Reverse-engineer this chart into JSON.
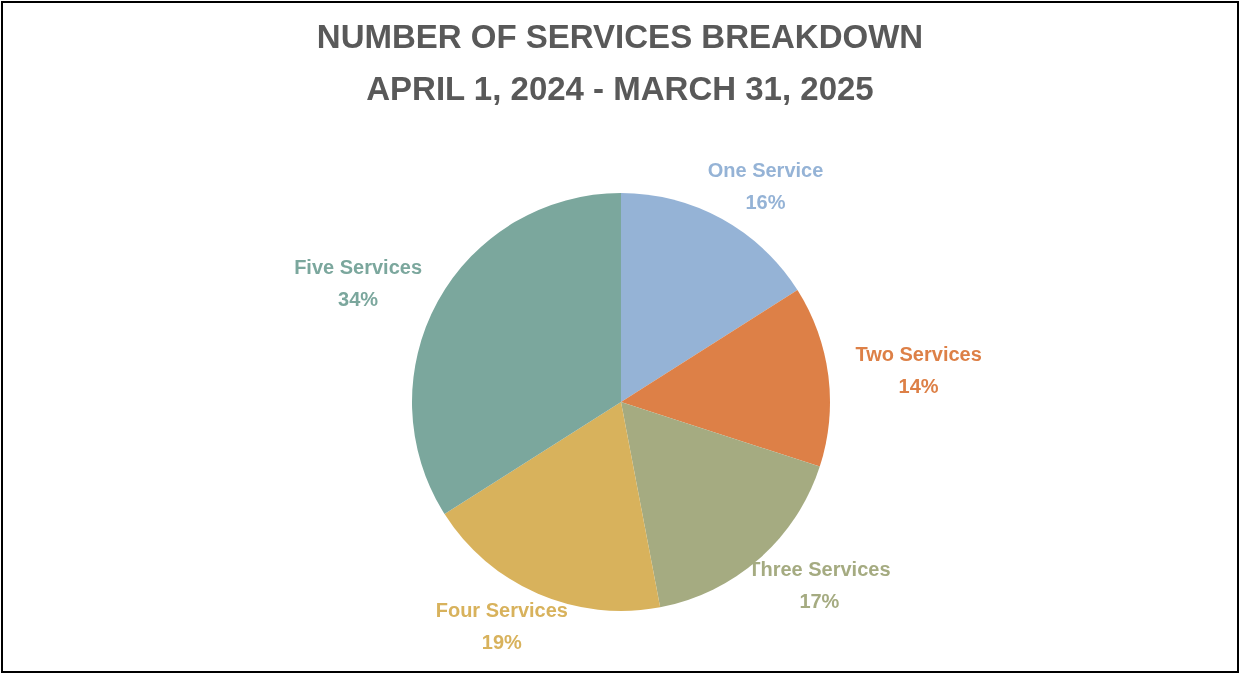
{
  "chart_data": {
    "type": "pie",
    "title": "NUMBER OF SERVICES BREAKDOWN",
    "subtitle": "APRIL 1, 2024 - MARCH 31, 2025",
    "categories": [
      "One Service",
      "Two Services",
      "Three Services",
      "Four Services",
      "Five Services"
    ],
    "values": [
      16,
      14,
      17,
      19,
      34
    ],
    "colors": [
      "#95b3d6",
      "#dd8047",
      "#a5ab81",
      "#d8b25c",
      "#7ba79d"
    ],
    "value_labels": [
      "16%",
      "14%",
      "17%",
      "19%",
      "34%"
    ],
    "legend": false
  }
}
